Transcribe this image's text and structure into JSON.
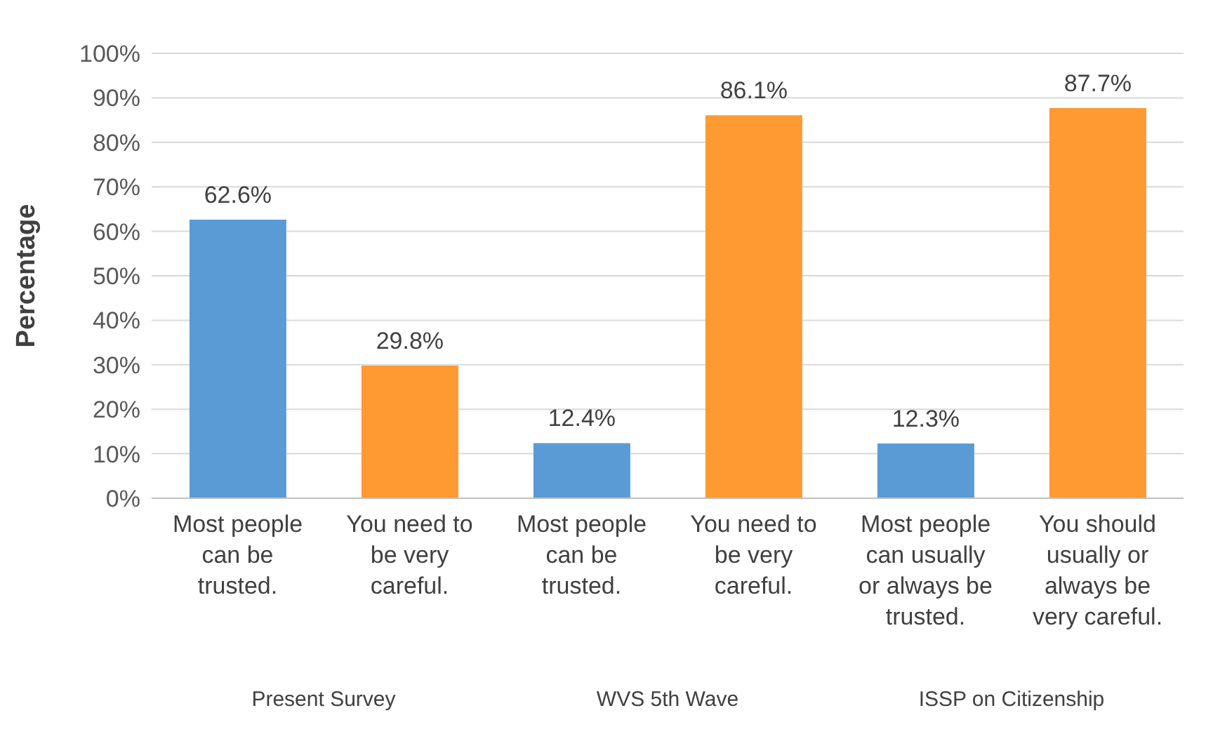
{
  "chart_data": {
    "type": "bar",
    "ylabel": "Percentage",
    "categories": [
      "Most people can be trusted.",
      "You need to be very careful.",
      "Most people can be trusted.",
      "You need to be very careful.",
      "Most people can usually or always be trusted.",
      "You should usually or always be very careful."
    ],
    "values": [
      62.6,
      29.8,
      12.4,
      86.1,
      12.3,
      87.7
    ],
    "colors": [
      "#5b9bd5",
      "#ff9a33",
      "#5b9bd5",
      "#ff9a33",
      "#5b9bd5",
      "#ff9a33"
    ],
    "value_labels": [
      "62.6%",
      "29.8%",
      "12.4%",
      "86.1%",
      "12.3%",
      "87.7%"
    ],
    "ylim": [
      0,
      100
    ],
    "yticks": [
      {
        "value": 0,
        "label": "0%"
      },
      {
        "value": 10,
        "label": "10%"
      },
      {
        "value": 20,
        "label": "20%"
      },
      {
        "value": 30,
        "label": "30%"
      },
      {
        "value": 40,
        "label": "40%"
      },
      {
        "value": 50,
        "label": "50%"
      },
      {
        "value": 60,
        "label": "60%"
      },
      {
        "value": 70,
        "label": "70%"
      },
      {
        "value": 80,
        "label": "80%"
      },
      {
        "value": 90,
        "label": "90%"
      },
      {
        "value": 100,
        "label": "100%"
      }
    ],
    "grid": "y",
    "annotations": [
      "Present Survey",
      "WVS 5th Wave",
      "ISSP on Citizenship"
    ]
  }
}
